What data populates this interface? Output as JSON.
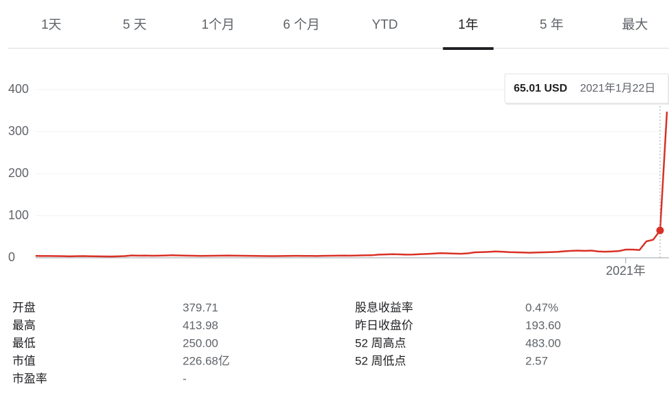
{
  "tabs": {
    "items": [
      "1天",
      "5 天",
      "1个月",
      "6 个月",
      "YTD",
      "1年",
      "5 年",
      "最大"
    ],
    "active": 5
  },
  "chart_data": {
    "type": "line",
    "color": "#d93025",
    "grid": true,
    "ylim": [
      0,
      400
    ],
    "yticks": [
      0,
      100,
      200,
      300,
      400
    ],
    "categories": [
      null,
      null,
      null,
      null,
      null,
      null,
      null,
      null,
      null,
      null,
      null,
      null,
      null,
      null,
      null,
      null,
      null,
      null,
      null,
      null,
      null,
      null,
      null,
      null,
      null,
      null,
      null,
      null,
      null,
      null,
      null,
      null,
      null,
      null,
      null,
      null,
      null,
      null,
      null,
      null,
      null,
      null,
      null,
      null,
      null,
      null,
      null,
      null,
      null,
      null,
      null,
      null,
      null,
      null,
      null,
      null,
      null,
      null,
      null,
      null,
      null,
      null,
      null,
      null,
      null,
      null,
      null,
      null,
      null,
      null,
      null,
      null,
      null,
      null,
      null,
      null,
      null,
      null,
      null,
      null,
      null,
      null,
      null,
      null,
      null,
      null,
      "2021年",
      null,
      null,
      null,
      null,
      null,
      null
    ],
    "values": [
      4.5,
      4.3,
      4.2,
      4,
      3.8,
      3.5,
      3.8,
      4,
      3.7,
      3.5,
      3.2,
      3,
      3.4,
      4,
      5.5,
      5,
      5.2,
      4.8,
      5,
      5.5,
      6,
      5.5,
      5,
      4.8,
      4.5,
      4.6,
      4.8,
      5,
      5.2,
      5,
      4.8,
      4.7,
      4.5,
      4.3,
      4.1,
      4,
      4.2,
      4.5,
      4.6,
      4.5,
      4.4,
      4.3,
      4.6,
      4.8,
      5,
      5.2,
      5,
      5.5,
      5.8,
      6,
      7.5,
      8,
      8.5,
      8.2,
      7.6,
      7.8,
      8.5,
      9.2,
      10,
      11,
      10.5,
      10,
      9.5,
      10.5,
      13,
      13.5,
      14,
      15,
      14.5,
      13.5,
      13,
      12.5,
      12,
      12.5,
      13,
      13.5,
      14,
      15.5,
      16.5,
      17,
      16.5,
      17,
      15,
      14.5,
      15,
      16,
      19.5,
      19.5,
      18.5,
      39,
      43,
      65.01,
      347.51
    ],
    "hover_index": 91,
    "tooltip": {
      "price": "65.01 USD",
      "date": "2021年1月22日"
    }
  },
  "stats": {
    "rows": [
      [
        "开盘",
        "379.71",
        "股息收益率",
        "0.47%"
      ],
      [
        "最高",
        "413.98",
        "昨日收盘价",
        "193.60"
      ],
      [
        "最低",
        "250.00",
        "52 周高点",
        "483.00"
      ],
      [
        "市值",
        "226.68亿",
        "52 周低点",
        "2.57"
      ],
      [
        "市盈率",
        "-"
      ]
    ]
  }
}
